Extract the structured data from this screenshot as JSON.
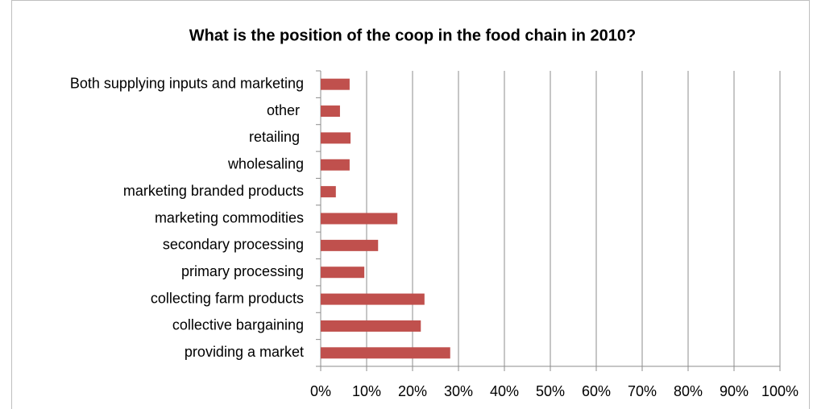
{
  "chart_data": {
    "type": "barh",
    "title": "What is the position of the coop in the food chain in 2010?",
    "categories": [
      "Both supplying inputs and marketing",
      "other ",
      "retailing ",
      "wholesaling",
      "marketing branded products",
      "marketing commodities",
      "secondary processing",
      "primary processing",
      "collecting farm products",
      "collective bargaining",
      "providing a market"
    ],
    "values": [
      6.3,
      4.2,
      6.5,
      6.3,
      3.3,
      16.7,
      12.5,
      9.5,
      22.6,
      21.8,
      28.2
    ],
    "color": "#c0504d",
    "xlim": [
      0,
      100
    ],
    "xticks": [
      {
        "value": 0,
        "label": "0%"
      },
      {
        "value": 10,
        "label": "10%"
      },
      {
        "value": 20,
        "label": "20%"
      },
      {
        "value": 30,
        "label": "30%"
      },
      {
        "value": 40,
        "label": "40%"
      },
      {
        "value": 50,
        "label": "50%"
      },
      {
        "value": 60,
        "label": "60%"
      },
      {
        "value": 70,
        "label": "70%"
      },
      {
        "value": 80,
        "label": "80%"
      },
      {
        "value": 90,
        "label": "90%"
      },
      {
        "value": 100,
        "label": "100%"
      }
    ],
    "grid": true
  }
}
